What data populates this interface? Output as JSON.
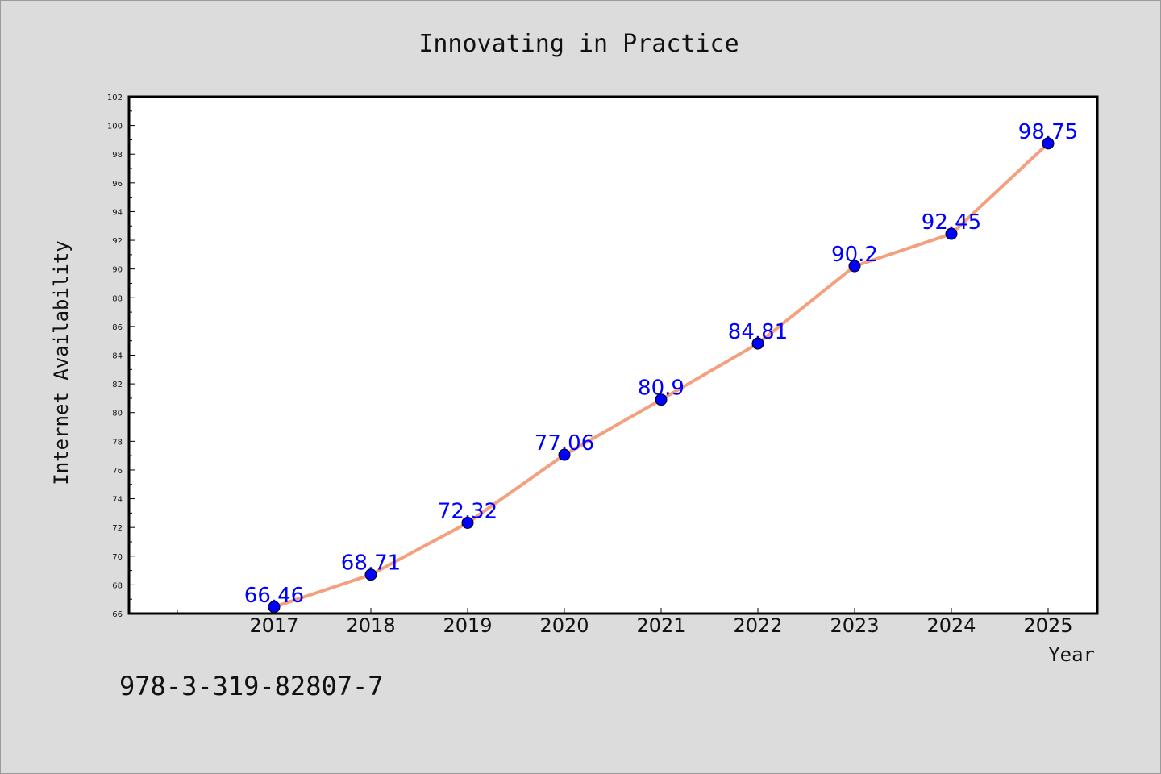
{
  "chart_data": {
    "type": "line",
    "title": "Innovating in Practice",
    "xlabel": "Year",
    "ylabel": "Internet Availability",
    "categories": [
      "2017",
      "2018",
      "2019",
      "2020",
      "2021",
      "2022",
      "2023",
      "2024",
      "2025"
    ],
    "series": [
      {
        "values": [
          66.46,
          68.71,
          72.32,
          77.06,
          80.9,
          84.81,
          90.2,
          92.45,
          98.75
        ],
        "line_color": "#f4a07e",
        "marker_color": "#0000ff"
      }
    ],
    "data_labels": [
      "66.46",
      "68.71",
      "72.32",
      "77.06",
      "80.9",
      "84.81",
      "90.2",
      "92.45",
      "98.75"
    ],
    "ylim": [
      66,
      102
    ],
    "yticks": [
      66,
      68,
      70,
      72,
      74,
      76,
      78,
      80,
      82,
      84,
      86,
      88,
      90,
      92,
      94,
      96,
      98,
      100,
      102
    ],
    "grid": false,
    "legend": false,
    "label_color": "#0000ff"
  },
  "footer": {
    "isbn": "978-3-319-82807-7"
  }
}
